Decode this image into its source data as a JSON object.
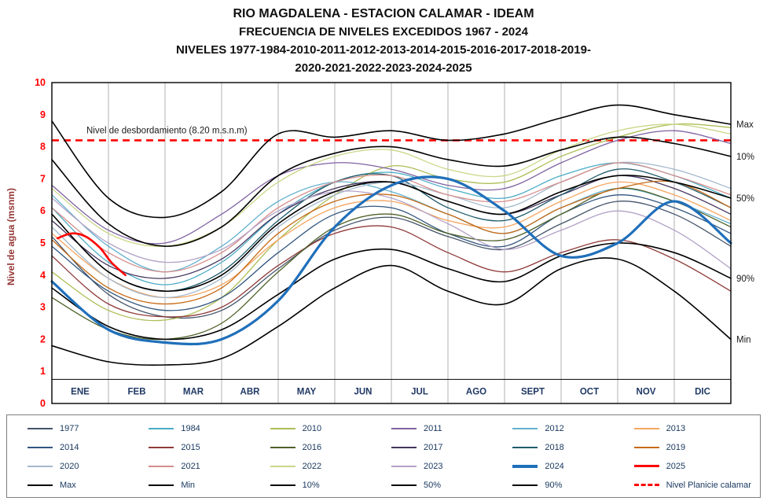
{
  "title": {
    "line1": "RIO MAGDALENA - ESTACION CALAMAR - IDEAM",
    "line2": "FRECUENCIA DE NIVELES EXCEDIDOS 1967 - 2024",
    "line3": "NIVELES 1977-1984-2010-2011-2012-2013-2014-2015-2016-2017-2018-2019-",
    "line4": "2020-2021-2022-2023-2024-2025"
  },
  "colors": {
    "tick_label": "#FF0000",
    "month_label": "#1F3864",
    "axis_title": "#943634",
    "grid": "#9E9E9E",
    "plot_border": "#000000",
    "overflow_line": "#FF0000"
  },
  "chart_data": {
    "type": "line",
    "title": "RIO MAGDALENA - ESTACION CALAMAR - IDEAM / FRECUENCIA DE NIVELES EXCEDIDOS 1967 - 2024",
    "ylabel": "Nivel de agua (msnm)",
    "xlabel": "",
    "ylim": [
      0,
      10
    ],
    "y_ticks": [
      0,
      1,
      2,
      3,
      4,
      5,
      6,
      7,
      8,
      9,
      10
    ],
    "x_months": [
      "ENE",
      "FEB",
      "MAR",
      "ABR",
      "MAY",
      "JUN",
      "JUL",
      "AGO",
      "SEPT",
      "OCT",
      "NOV",
      "DIC"
    ],
    "grid": "vertical-month-lines",
    "legend_position": "bottom",
    "overflow_line": {
      "value": 8.2,
      "label": "Nivel de desbordamiento (8.20 m.s.n.m)",
      "color": "#FF0000",
      "style": "dashed"
    },
    "series": [
      {
        "name": "1977",
        "color": "#44546A",
        "width": 1.3,
        "values": [
          5.2,
          3.4,
          2.7,
          2.9,
          4.2,
          5.4,
          5.8,
          5.2,
          4.8,
          5.6,
          6.3,
          5.9,
          4.9
        ]
      },
      {
        "name": "1984",
        "color": "#4BACC6",
        "width": 1.3,
        "values": [
          6.1,
          4.4,
          3.7,
          4.4,
          5.9,
          6.9,
          7.2,
          6.7,
          6.4,
          7.1,
          7.5,
          7.1,
          6.4
        ]
      },
      {
        "name": "2010",
        "color": "#AFBD56",
        "width": 1.3,
        "values": [
          4.1,
          2.9,
          2.6,
          3.3,
          5.1,
          6.5,
          7.4,
          7.0,
          6.9,
          7.7,
          8.3,
          8.7,
          8.6
        ]
      },
      {
        "name": "2011",
        "color": "#7F63A1",
        "width": 1.3,
        "values": [
          6.8,
          5.4,
          5.0,
          5.9,
          7.1,
          7.5,
          7.3,
          6.8,
          6.7,
          7.5,
          8.2,
          8.5,
          8.1
        ]
      },
      {
        "name": "2012",
        "color": "#63B1CE",
        "width": 1.3,
        "values": [
          6.5,
          4.9,
          4.1,
          4.9,
          6.3,
          6.9,
          6.6,
          5.9,
          5.3,
          6.1,
          6.7,
          6.3,
          5.6
        ]
      },
      {
        "name": "2013",
        "color": "#F4A661",
        "width": 1.3,
        "values": [
          5.3,
          3.9,
          3.3,
          3.7,
          5.1,
          6.1,
          6.3,
          5.7,
          5.5,
          6.3,
          6.9,
          6.5,
          5.7
        ]
      },
      {
        "name": "2014",
        "color": "#31567E",
        "width": 1.3,
        "values": [
          4.9,
          3.5,
          2.9,
          3.3,
          4.7,
          5.9,
          6.1,
          5.3,
          4.9,
          5.9,
          6.5,
          6.1,
          5.3
        ]
      },
      {
        "name": "2015",
        "color": "#8E3B39",
        "width": 1.3,
        "values": [
          4.6,
          3.1,
          2.7,
          3.0,
          4.3,
          5.3,
          5.5,
          4.7,
          4.1,
          4.7,
          5.1,
          4.5,
          3.5
        ]
      },
      {
        "name": "2016",
        "color": "#4E6128",
        "width": 1.3,
        "values": [
          3.3,
          2.3,
          2.0,
          2.5,
          4.1,
          5.5,
          5.9,
          5.3,
          5.1,
          5.9,
          6.7,
          6.3,
          5.5
        ]
      },
      {
        "name": "2017",
        "color": "#45365E",
        "width": 1.3,
        "values": [
          5.7,
          4.3,
          3.9,
          4.5,
          5.9,
          6.7,
          6.9,
          6.3,
          5.9,
          6.5,
          7.1,
          6.7,
          5.9
        ]
      },
      {
        "name": "2018",
        "color": "#1F5C6D",
        "width": 1.3,
        "values": [
          5.9,
          4.1,
          3.5,
          4.1,
          5.7,
          6.9,
          7.1,
          6.1,
          5.7,
          6.5,
          7.3,
          6.9,
          6.1
        ]
      },
      {
        "name": "2019",
        "color": "#C66A15",
        "width": 1.3,
        "values": [
          5.1,
          3.6,
          3.1,
          3.6,
          5.3,
          6.3,
          6.5,
          5.9,
          5.3,
          6.1,
          6.7,
          6.9,
          6.1
        ]
      },
      {
        "name": "2020",
        "color": "#A3B8CC",
        "width": 1.3,
        "values": [
          5.5,
          3.9,
          3.3,
          3.9,
          5.5,
          6.5,
          6.9,
          6.5,
          6.1,
          6.9,
          7.5,
          7.3,
          6.7
        ]
      },
      {
        "name": "2021",
        "color": "#D58E8C",
        "width": 1.3,
        "values": [
          6.1,
          4.7,
          4.1,
          4.7,
          6.1,
          6.9,
          7.1,
          6.5,
          6.3,
          6.9,
          7.5,
          7.1,
          6.5
        ]
      },
      {
        "name": "2022",
        "color": "#C9D787",
        "width": 1.3,
        "values": [
          6.7,
          5.3,
          4.9,
          5.5,
          6.9,
          7.7,
          7.9,
          7.3,
          7.1,
          7.9,
          8.5,
          8.7,
          8.4
        ]
      },
      {
        "name": "2023",
        "color": "#B3A2C7",
        "width": 1.3,
        "values": [
          6.4,
          5.0,
          4.4,
          4.8,
          6.0,
          6.6,
          6.4,
          5.6,
          4.8,
          5.4,
          6.0,
          5.4,
          4.2
        ]
      },
      {
        "name": "Max",
        "color": "#000000",
        "width": 1.6,
        "right_label": "Max",
        "values": [
          8.8,
          6.4,
          5.8,
          6.6,
          8.4,
          8.3,
          8.5,
          8.2,
          8.4,
          8.9,
          9.3,
          9.0,
          8.7
        ]
      },
      {
        "name": "10%",
        "color": "#000000",
        "width": 1.6,
        "right_label": "10%",
        "values": [
          7.6,
          5.6,
          4.9,
          5.5,
          7.1,
          7.8,
          8.0,
          7.6,
          7.4,
          7.9,
          8.3,
          8.1,
          7.7
        ]
      },
      {
        "name": "50%",
        "color": "#000000",
        "width": 1.6,
        "right_label": "50%",
        "values": [
          5.9,
          4.1,
          3.5,
          4.0,
          5.6,
          6.6,
          6.9,
          6.3,
          5.9,
          6.6,
          7.1,
          6.9,
          6.4
        ]
      },
      {
        "name": "90%",
        "color": "#000000",
        "width": 1.6,
        "right_label": "90%",
        "values": [
          3.6,
          2.4,
          2.0,
          2.3,
          3.4,
          4.5,
          4.8,
          4.2,
          3.8,
          4.6,
          5.0,
          4.7,
          3.9
        ]
      },
      {
        "name": "Min",
        "color": "#000000",
        "width": 1.6,
        "right_label": "Min",
        "values": [
          1.8,
          1.3,
          1.2,
          1.4,
          2.4,
          3.6,
          4.3,
          3.5,
          3.1,
          4.2,
          4.5,
          3.5,
          2.0
        ]
      },
      {
        "name": "2024",
        "color": "#1F6FBA",
        "width": 3.2,
        "values": [
          3.8,
          2.3,
          1.9,
          2.0,
          3.2,
          5.5,
          6.8,
          7.0,
          6.0,
          4.6,
          5.0,
          6.3,
          5.0
        ]
      },
      {
        "name": "2025",
        "color": "#FF0000",
        "width": 2.6,
        "x": [
          0.1,
          0.35,
          0.6,
          0.85,
          1.05,
          1.3
        ],
        "values": [
          5.15,
          5.3,
          5.2,
          4.85,
          4.4,
          4.0
        ]
      }
    ]
  },
  "legend": {
    "items": [
      {
        "label": "1977",
        "color": "#44546A",
        "width": 2,
        "dash": false
      },
      {
        "label": "1984",
        "color": "#4BACC6",
        "width": 2,
        "dash": false
      },
      {
        "label": "2010",
        "color": "#AFBD56",
        "width": 2,
        "dash": false
      },
      {
        "label": "2011",
        "color": "#7F63A1",
        "width": 2,
        "dash": false
      },
      {
        "label": "2012",
        "color": "#63B1CE",
        "width": 2,
        "dash": false
      },
      {
        "label": "2013",
        "color": "#F4A661",
        "width": 2,
        "dash": false
      },
      {
        "label": "2014",
        "color": "#31567E",
        "width": 2,
        "dash": false
      },
      {
        "label": "2015",
        "color": "#8E3B39",
        "width": 2,
        "dash": false
      },
      {
        "label": "2016",
        "color": "#4E6128",
        "width": 2,
        "dash": false
      },
      {
        "label": "2017",
        "color": "#45365E",
        "width": 2,
        "dash": false
      },
      {
        "label": "2018",
        "color": "#1F5C6D",
        "width": 2,
        "dash": false
      },
      {
        "label": "2019",
        "color": "#C66A15",
        "width": 2,
        "dash": false
      },
      {
        "label": "2020",
        "color": "#A3B8CC",
        "width": 2,
        "dash": false
      },
      {
        "label": "2021",
        "color": "#D58E8C",
        "width": 2,
        "dash": false
      },
      {
        "label": "2022",
        "color": "#C9D787",
        "width": 2,
        "dash": false
      },
      {
        "label": "2023",
        "color": "#B3A2C7",
        "width": 2,
        "dash": false
      },
      {
        "label": "2024",
        "color": "#1F6FBA",
        "width": 4,
        "dash": false
      },
      {
        "label": "2025",
        "color": "#FF0000",
        "width": 3,
        "dash": false
      },
      {
        "label": "Max",
        "color": "#000000",
        "width": 2,
        "dash": false
      },
      {
        "label": "Min",
        "color": "#000000",
        "width": 2,
        "dash": false
      },
      {
        "label": "10%",
        "color": "#000000",
        "width": 2,
        "dash": false
      },
      {
        "label": "50%",
        "color": "#000000",
        "width": 2,
        "dash": false
      },
      {
        "label": "90%",
        "color": "#000000",
        "width": 2,
        "dash": false
      },
      {
        "label": "Nivel Planicie calamar",
        "color": "#FF0000",
        "width": 3,
        "dash": true
      }
    ]
  }
}
